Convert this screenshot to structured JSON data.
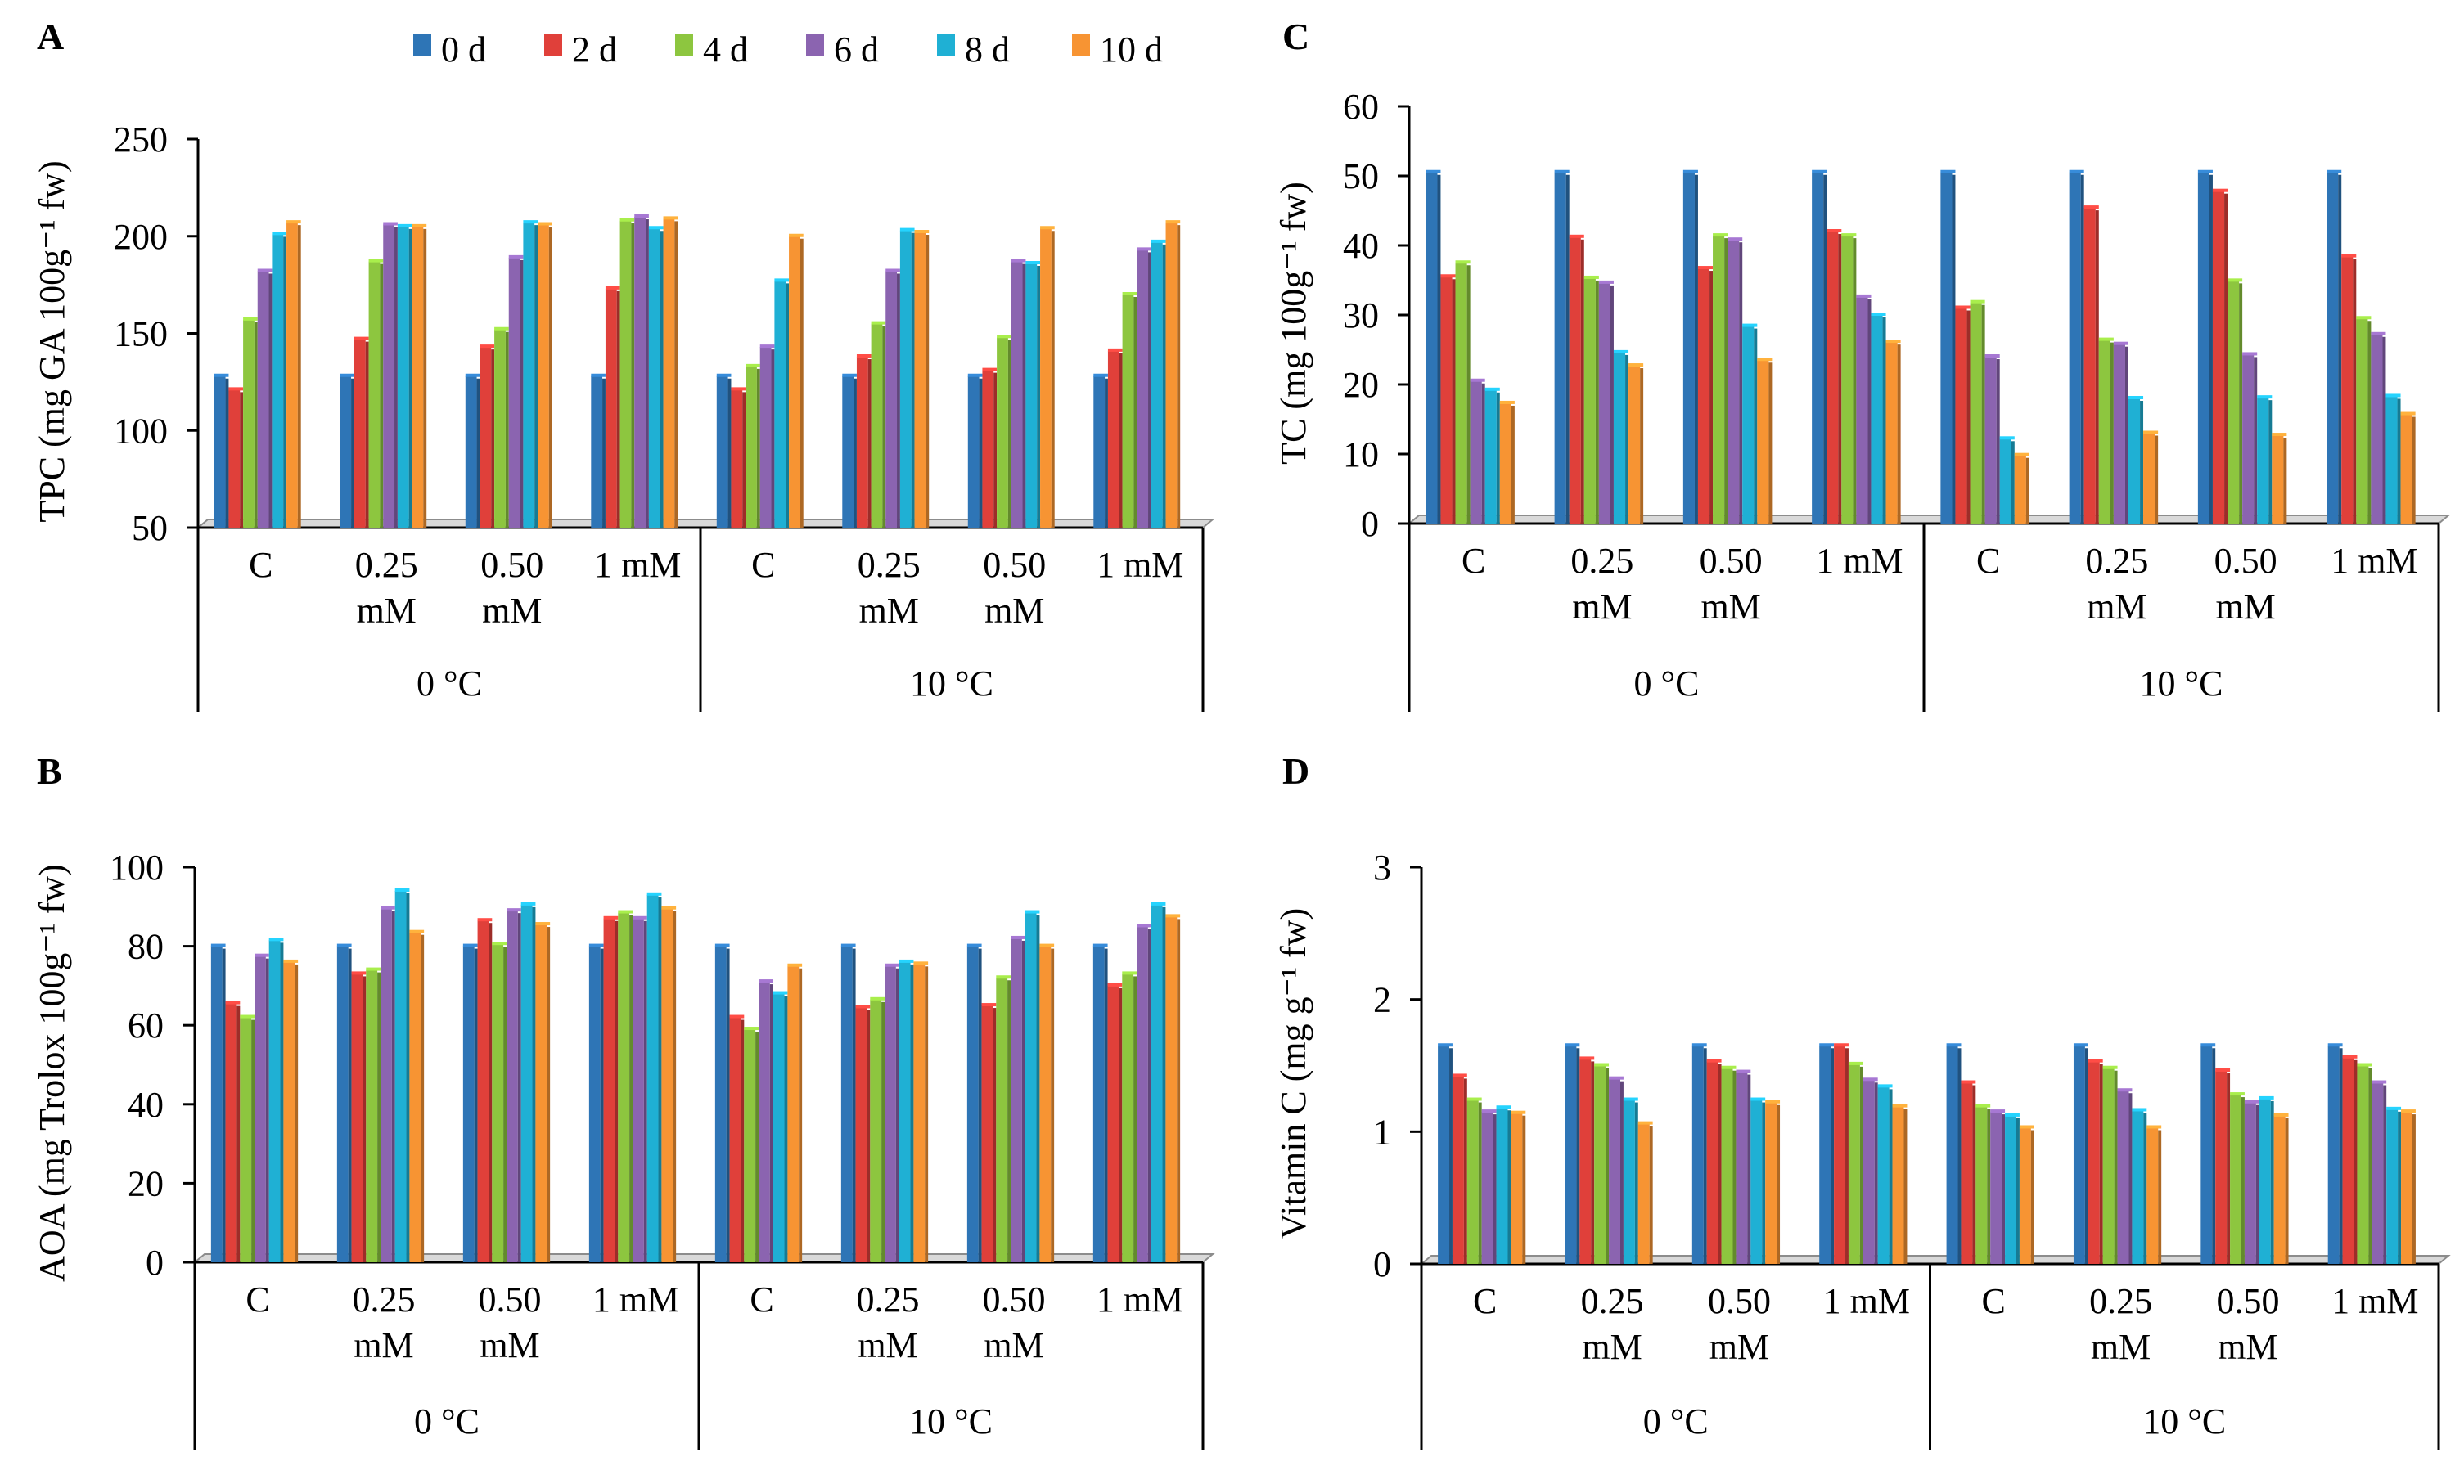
{
  "legend": [
    {
      "label": "0 d",
      "color": "#2e75b6"
    },
    {
      "label": "2 d",
      "color": "#e0403a"
    },
    {
      "label": "4 d",
      "color": "#8dc63f"
    },
    {
      "label": "6 d",
      "color": "#8b64b0"
    },
    {
      "label": "8 d",
      "color": "#1fb0d4"
    },
    {
      "label": "10 d",
      "color": "#f79433"
    }
  ],
  "chart_data": [
    {
      "panel": "A",
      "type": "bar",
      "ylabel": "TPC (mg GA 100g⁻¹ fw)",
      "ylim": [
        50,
        250
      ],
      "yticks": [
        50,
        100,
        150,
        200,
        250
      ],
      "categories": [
        "C",
        "0.25\nmM",
        "0.50\nmM",
        "1 mM",
        "C",
        "0.25\nmM",
        "0.50\nmM",
        "1 mM"
      ],
      "groups": [
        {
          "label": "0 °C",
          "span": 4
        },
        {
          "label": "10 °C",
          "span": 4
        }
      ],
      "series": [
        {
          "name": "0 d",
          "values": [
            128,
            128,
            128,
            128,
            128,
            128,
            128,
            128
          ]
        },
        {
          "name": "2 d",
          "values": [
            121,
            147,
            143,
            173,
            121,
            138,
            131,
            141
          ]
        },
        {
          "name": "4 d",
          "values": [
            157,
            187,
            152,
            208,
            133,
            155,
            148,
            170
          ]
        },
        {
          "name": "6 d",
          "values": [
            182,
            206,
            189,
            210,
            143,
            182,
            187,
            193
          ]
        },
        {
          "name": "8 d",
          "values": [
            201,
            205,
            207,
            204,
            177,
            203,
            186,
            197
          ]
        },
        {
          "name": "10 d",
          "values": [
            207,
            205,
            206,
            209,
            200,
            202,
            204,
            207
          ]
        }
      ]
    },
    {
      "panel": "C",
      "type": "bar",
      "ylabel": "TC (mg 100g⁻¹ fw)",
      "ylim": [
        0,
        60
      ],
      "yticks": [
        0,
        10,
        20,
        30,
        40,
        50,
        60
      ],
      "categories": [
        "C",
        "0.25\nmM",
        "0.50\nmM",
        "1 mM",
        "C",
        "0.25\nmM",
        "0.50\nmM",
        "1 mM"
      ],
      "groups": [
        {
          "label": "0 °C",
          "span": 4
        },
        {
          "label": "10 °C",
          "span": 4
        }
      ],
      "series": [
        {
          "name": "0 d",
          "values": [
            50.5,
            50.5,
            50.5,
            50.5,
            50.5,
            50.5,
            50.5,
            50.5
          ]
        },
        {
          "name": "2 d",
          "values": [
            35.5,
            41.2,
            36.7,
            42.0,
            31.0,
            45.4,
            47.8,
            38.4
          ]
        },
        {
          "name": "4 d",
          "values": [
            37.5,
            35.3,
            41.4,
            41.4,
            31.8,
            26.4,
            34.9,
            29.5
          ]
        },
        {
          "name": "6 d",
          "values": [
            20.5,
            34.6,
            40.8,
            32.6,
            24.0,
            25.8,
            24.3,
            27.2
          ]
        },
        {
          "name": "8 d",
          "values": [
            19.2,
            24.6,
            28.4,
            30.0,
            12.2,
            18.0,
            18.1,
            18.3
          ]
        },
        {
          "name": "10 d",
          "values": [
            17.3,
            22.7,
            23.5,
            26.1,
            9.8,
            13.0,
            12.7,
            15.7
          ]
        }
      ]
    },
    {
      "panel": "B",
      "type": "bar",
      "ylabel": "AOA (mg Trolox 100g⁻¹ fw)",
      "ylim": [
        0,
        100
      ],
      "yticks": [
        0,
        20,
        40,
        60,
        80,
        100
      ],
      "categories": [
        "C",
        "0.25\nmM",
        "0.50\nmM",
        "1 mM",
        "C",
        "0.25\nmM",
        "0.50\nmM",
        "1 mM"
      ],
      "groups": [
        {
          "label": "0 °C",
          "span": 4
        },
        {
          "label": "10 °C",
          "span": 4
        }
      ],
      "series": [
        {
          "name": "0 d",
          "values": [
            80,
            80,
            80,
            80,
            80,
            80,
            80,
            80
          ]
        },
        {
          "name": "2 d",
          "values": [
            65.5,
            73,
            86.5,
            87,
            62,
            64.5,
            65,
            70
          ]
        },
        {
          "name": "4 d",
          "values": [
            62,
            74,
            80.5,
            88.5,
            59,
            66.5,
            72,
            73
          ]
        },
        {
          "name": "6 d",
          "values": [
            77.5,
            89.5,
            89,
            87,
            71,
            75,
            82,
            85
          ]
        },
        {
          "name": "8 d",
          "values": [
            81.5,
            94,
            90.5,
            93,
            68,
            76,
            88.5,
            90.5
          ]
        },
        {
          "name": "10 d",
          "values": [
            76,
            83.5,
            85.5,
            89.5,
            75,
            75.5,
            80,
            87.5
          ]
        }
      ]
    },
    {
      "panel": "D",
      "type": "bar",
      "ylabel": "Vitamin C (mg g⁻¹ fw)",
      "ylim": [
        0,
        3
      ],
      "yticks": [
        0,
        1,
        2,
        3
      ],
      "categories": [
        "C",
        "0.25\nmM",
        "0.50\nmM",
        "1 mM",
        "C",
        "0.25\nmM",
        "0.50\nmM",
        "1 mM"
      ],
      "groups": [
        {
          "label": "0 °C",
          "span": 4
        },
        {
          "label": "10 °C",
          "span": 4
        }
      ],
      "series": [
        {
          "name": "0 d",
          "values": [
            1.65,
            1.65,
            1.65,
            1.65,
            1.65,
            1.65,
            1.65,
            1.65
          ]
        },
        {
          "name": "2 d",
          "values": [
            1.42,
            1.55,
            1.53,
            1.65,
            1.37,
            1.53,
            1.46,
            1.56
          ]
        },
        {
          "name": "4 d",
          "values": [
            1.24,
            1.5,
            1.48,
            1.51,
            1.19,
            1.48,
            1.28,
            1.5
          ]
        },
        {
          "name": "6 d",
          "values": [
            1.15,
            1.4,
            1.45,
            1.39,
            1.15,
            1.31,
            1.22,
            1.37
          ]
        },
        {
          "name": "8 d",
          "values": [
            1.18,
            1.24,
            1.24,
            1.34,
            1.12,
            1.16,
            1.25,
            1.17
          ]
        },
        {
          "name": "10 d",
          "values": [
            1.14,
            1.06,
            1.22,
            1.19,
            1.03,
            1.03,
            1.12,
            1.15
          ]
        }
      ]
    }
  ]
}
